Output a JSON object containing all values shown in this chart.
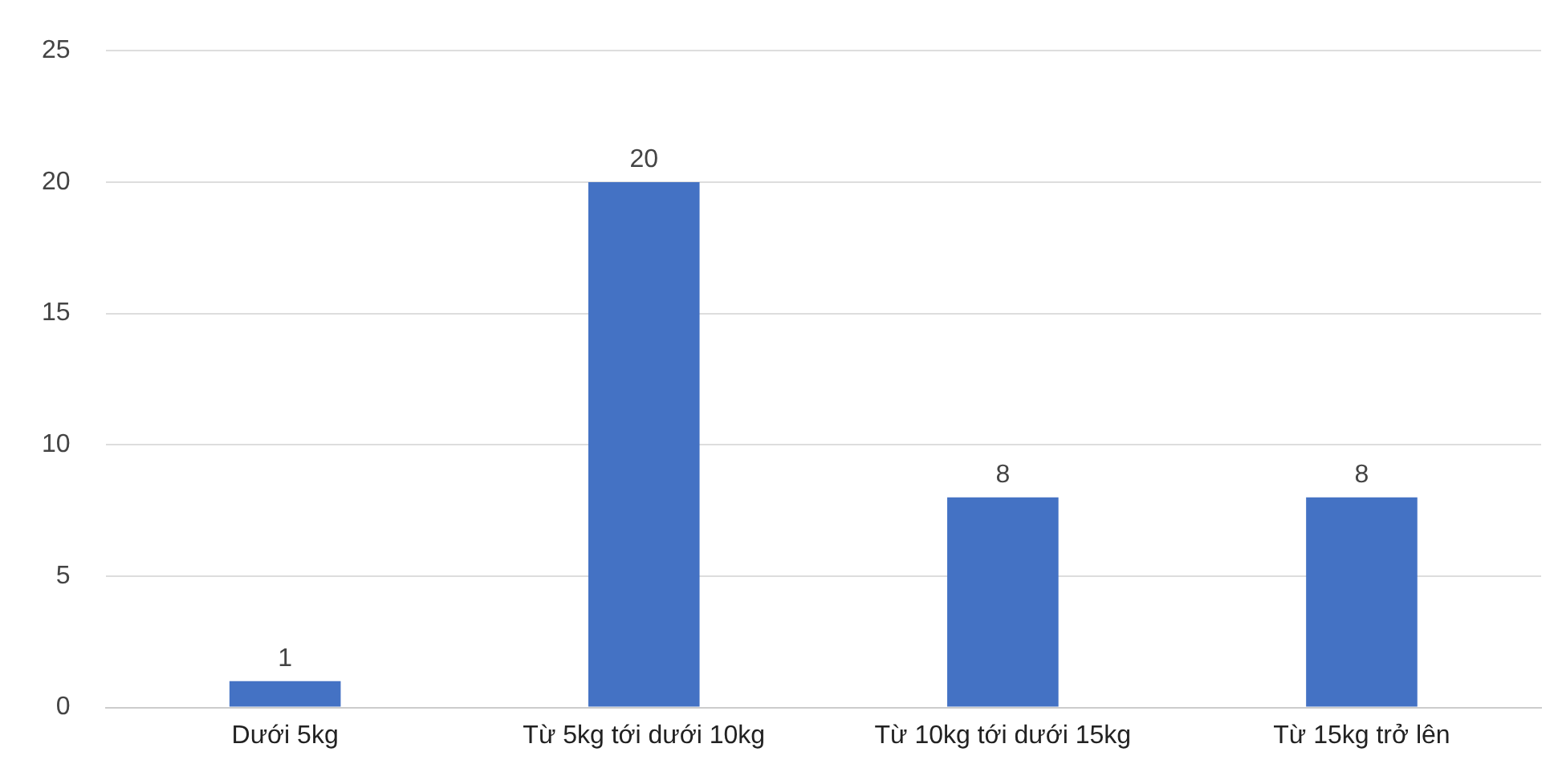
{
  "chart_data": {
    "type": "bar",
    "categories": [
      "Dưới 5kg",
      "Từ 5kg tới dưới 10kg",
      "Từ 10kg tới dưới 15kg",
      "Từ 15kg trở lên"
    ],
    "values": [
      1,
      20,
      8,
      8
    ],
    "color": "#4472c4",
    "ylim": [
      0,
      25
    ],
    "yticks": [
      0,
      5,
      10,
      15,
      20,
      25
    ],
    "grid": "y",
    "data_labels": true,
    "legend": false
  }
}
